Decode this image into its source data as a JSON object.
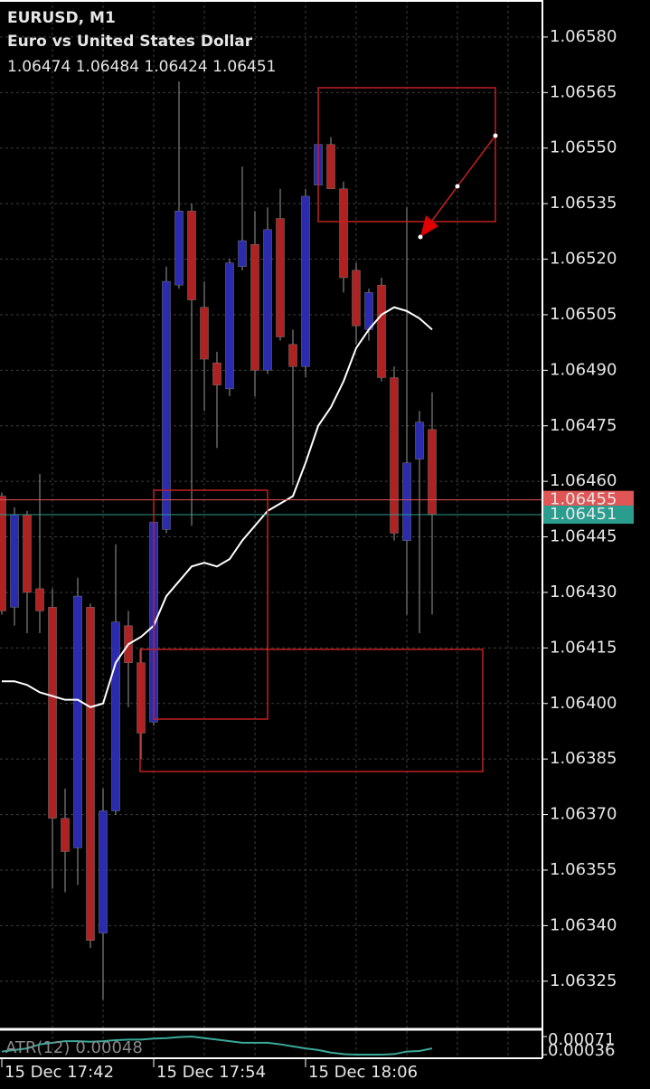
{
  "chart_data": {
    "type": "candlestick",
    "title": "EURUSD, M1",
    "subtitle": "Euro vs United States Dollar",
    "categories": [
      "15 Dec 17:42",
      null,
      null,
      null,
      null,
      null,
      null,
      null,
      null,
      null,
      null,
      null,
      "15 Dec 17:54",
      null,
      null,
      null,
      null,
      null,
      null,
      null,
      null,
      null,
      null,
      null,
      "15 Dec 18:06",
      null,
      null,
      null,
      null,
      null,
      null,
      null,
      null,
      null,
      null
    ],
    "open": [
      1.06456,
      1.06426,
      1.06451,
      1.06431,
      1.06426,
      1.06369,
      1.06361,
      1.06426,
      1.06338,
      1.06371,
      1.06421,
      1.06411,
      1.06395,
      1.06447,
      1.06513,
      1.06533,
      1.06507,
      1.06492,
      1.06485,
      1.06518,
      1.06524,
      1.0649,
      1.06531,
      1.06497,
      1.06491,
      1.0654,
      1.06551,
      1.06539,
      1.06517,
      1.06501,
      1.06513,
      1.06488,
      1.06444,
      1.06466,
      1.06474
    ],
    "high": [
      1.06457,
      1.06453,
      1.06452,
      1.06462,
      1.06431,
      1.06377,
      1.06434,
      1.06427,
      1.06377,
      1.06443,
      1.06425,
      1.06415,
      1.06451,
      1.06518,
      1.06568,
      1.06535,
      1.06514,
      1.06495,
      1.0652,
      1.06545,
      1.06533,
      1.06534,
      1.06539,
      1.06501,
      1.06539,
      1.06553,
      1.06553,
      1.06541,
      1.06519,
      1.06512,
      1.06515,
      1.06491,
      1.06534,
      1.06479,
      1.06484
    ],
    "low": [
      1.06424,
      1.06421,
      1.06419,
      1.06419,
      1.0635,
      1.06349,
      1.06351,
      1.06334,
      1.0632,
      1.0637,
      1.06399,
      1.06385,
      1.06394,
      1.06446,
      1.06512,
      1.06448,
      1.06479,
      1.06469,
      1.06483,
      1.06517,
      1.06483,
      1.06489,
      1.06498,
      1.06459,
      1.06488,
      1.06537,
      1.06539,
      1.06511,
      1.06497,
      1.06498,
      1.06487,
      1.06444,
      1.06424,
      1.06419,
      1.06424
    ],
    "close": [
      1.06425,
      1.06451,
      1.0643,
      1.06425,
      1.06369,
      1.0636,
      1.06429,
      1.06336,
      1.06371,
      1.06422,
      1.06411,
      1.06392,
      1.06449,
      1.06514,
      1.06533,
      1.06509,
      1.06493,
      1.06486,
      1.06519,
      1.06525,
      1.0649,
      1.06528,
      1.06499,
      1.06491,
      1.06537,
      1.06551,
      1.06539,
      1.06515,
      1.06502,
      1.06511,
      1.06488,
      1.06446,
      1.06465,
      1.06476,
      1.06451
    ],
    "up_color": "#2b2bb0",
    "down_color": "#b02222",
    "wick_color": "#9a9a9a",
    "ma": {
      "color": "#ffffff",
      "values": [
        1.06406,
        1.06406,
        1.06405,
        1.06403,
        1.06402,
        1.06401,
        1.06401,
        1.06399,
        1.064,
        1.06411,
        1.06416,
        1.06418,
        1.06421,
        1.06429,
        1.06433,
        1.06437,
        1.06438,
        1.06437,
        1.06439,
        1.06444,
        1.06448,
        1.06452,
        1.06454,
        1.06456,
        1.06465,
        1.06475,
        1.0648,
        1.06487,
        1.06496,
        1.06501,
        1.06505,
        1.06507,
        1.06506,
        1.06504,
        1.06501
      ]
    },
    "price_lines": [
      {
        "value": 1.06455,
        "color": "#e05555"
      },
      {
        "value": 1.06451,
        "color": "#2a9d8f"
      }
    ],
    "ylim": [
      1.06312,
      1.0659
    ],
    "yticks": [
      {
        "value": 1.0658,
        "label": "1.06580"
      },
      1.06565,
      {
        "value": 1.0655,
        "label": "1.06550"
      },
      1.06535,
      {
        "value": 1.0652,
        "label": "1.06520"
      },
      1.06505,
      {
        "value": 1.0649,
        "label": "1.06490"
      },
      1.06475,
      {
        "value": 1.0646,
        "label": "1.06460"
      },
      1.06445,
      {
        "value": 1.0643,
        "label": "1.06430"
      },
      1.06415,
      {
        "value": 1.064,
        "label": "1.06400"
      },
      1.06385,
      {
        "value": 1.0637,
        "label": "1.06370"
      },
      1.06355,
      {
        "value": 1.0634,
        "label": "1.06340"
      },
      1.06325
    ],
    "grid": true,
    "atr": {
      "name": "ATR(12)",
      "color": "#3aa89a",
      "values": [
        0.00042,
        0.00045,
        0.00048,
        0.00056,
        0.00059,
        0.00062,
        0.00062,
        0.00061,
        0.00062,
        0.00064,
        0.00065,
        0.00065,
        0.00067,
        0.00068,
        0.0007,
        0.00071,
        0.00068,
        0.00065,
        0.00062,
        0.00059,
        0.00059,
        0.00059,
        0.00056,
        0.00052,
        0.00048,
        0.00045,
        0.0004,
        0.00037,
        0.00036,
        0.00036,
        0.00036,
        0.00037,
        0.00042,
        0.00043,
        0.00048
      ],
      "ylim": [
        0.00036,
        0.00071
      ],
      "yticks": [
        0.00071,
        0.00036
      ]
    }
  }
}
